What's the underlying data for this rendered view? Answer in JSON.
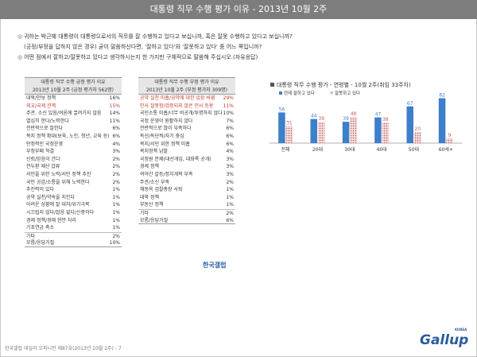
{
  "header": {
    "title": "대통령 직무 수행 평가 이유 - 2013년 10월 2주"
  },
  "questions": {
    "q1_line1": "귀하는 박근혜 대통령이 대통령으로서의 직무를 잘 수행하고 있다고 보십니까, 혹은 잘못 수행하고 있다고 보십니까?",
    "q1_line2": "(긍정/부정을 답하지 않은 경우) 굳이 말씀하신다면, '잘하고 있다'와 '잘못하고 있다' 중 어느 쪽입니까?",
    "q2_line1": "어떤 점에서 잘하고/잘못하고 있다고 생각하시는지 한 가지만 구체적으로 말씀해 주십시오.(자유응답)"
  },
  "positive_table": {
    "title_line1": "대통령 직무 수행 긍정 평가 이유",
    "title_line2": "2013년 10월 2주 (긍정 평가자 562명)",
    "rows": [
      {
        "label": "대북/안보 정책",
        "value": "16%",
        "red": false
      },
      {
        "label": "외교/국제 관계",
        "value": "15%",
        "red": true
      },
      {
        "label": "주관, 소신 있음/여론에 끌려가지 않음",
        "value": "14%",
        "red": false
      },
      {
        "label": "열심히 한다/노력한다",
        "value": "11%",
        "red": false
      },
      {
        "label": "전반적으로 잘한다",
        "value": "6%",
        "red": false
      },
      {
        "label": "복지 정책 확대(보육, 노인, 청년, 교육 등)",
        "value": "6%",
        "red": false
      },
      {
        "label": "안정적인 국정운영",
        "value": "4%",
        "red": false
      },
      {
        "label": "부정부패 척결",
        "value": "3%",
        "red": false
      },
      {
        "label": "신뢰/믿음이 간다",
        "value": "2%",
        "red": false
      },
      {
        "label": "전두환 재산 압류",
        "value": "2%",
        "red": false
      },
      {
        "label": "서민을 위한 노력/서민 정책 추진",
        "value": "2%",
        "red": false
      },
      {
        "label": "국민 공감/소통을 위해 노력한다",
        "value": "2%",
        "red": false
      },
      {
        "label": "추진력이 있다",
        "value": "1%",
        "red": false
      },
      {
        "label": "공약 실천/약속을 지킨다",
        "value": "1%",
        "red": false
      },
      {
        "label": "어려운 상황에 잘 대처/위기극복",
        "value": "1%",
        "red": false
      },
      {
        "label": "시끄럽지 않다/잡음 없다/신중하다",
        "value": "1%",
        "red": false
      },
      {
        "label": "경제 정책/경제 현안 처리",
        "value": "1%",
        "red": false
      },
      {
        "label": "기초연금 축소",
        "value": "1%",
        "red": false
      },
      {
        "label": "기타",
        "value": "2%",
        "red": false,
        "sep": true
      },
      {
        "label": "모름/응답거절",
        "value": "10%",
        "red": false
      }
    ]
  },
  "negative_table": {
    "title_line1": "대통령 직무 수행 부정 평가 이유",
    "title_line2": "2013년 10월 2주 (부정 평가자 309명)",
    "rows": [
      {
        "label": "공약 실천 미흡/공약에 대한 입장 바뀜",
        "value": "29%",
        "red": true
      },
      {
        "label": "인사 잘못함/검증되지 않은 인사 등용",
        "value": "11%",
        "red": true
      },
      {
        "label": "국민소통 미흡/너무 비공개/투명하지 않다",
        "value": "10%",
        "red": false
      },
      {
        "label": "국정 운영이 원활하지 않다",
        "value": "7%",
        "red": false
      },
      {
        "label": "전반적으로 많이 부족하다",
        "value": "6%",
        "red": false
      },
      {
        "label": "독선/독단적/자기 중심",
        "value": "6%",
        "red": false
      },
      {
        "label": "복지/서민 위한 정책 미흡",
        "value": "6%",
        "red": false
      },
      {
        "label": "복지정책 남발",
        "value": "4%",
        "red": false
      },
      {
        "label": "국정원 문제(대선개입, 대화록 공개)",
        "value": "3%",
        "red": false
      },
      {
        "label": "경제 정책",
        "value": "3%",
        "red": false
      },
      {
        "label": "여야간 갈등/정치개혁 부족",
        "value": "3%",
        "red": false
      },
      {
        "label": "주관/소신 부족",
        "value": "2%",
        "red": false
      },
      {
        "label": "채동욱 검찰총장 사퇴",
        "value": "1%",
        "red": false
      },
      {
        "label": "대북 정책",
        "value": "1%",
        "red": false
      },
      {
        "label": "부동산 정책",
        "value": "1%",
        "red": false
      },
      {
        "label": "기타",
        "value": "2%",
        "red": false,
        "sep": true
      },
      {
        "label": "모름/응답거절",
        "value": "6%",
        "red": false
      }
    ]
  },
  "logo_small": "한국갤럽",
  "chart_data": {
    "type": "bar",
    "title": "대통령 직무 수행 평가 - 연령별 - 10월 2주(취임 33주차)",
    "categories": [
      "전체",
      "20대",
      "30대",
      "40대",
      "50대",
      "60세+"
    ],
    "series": [
      {
        "name": "현재 잘하고 있다",
        "values": [
          56,
          44,
          39,
          47,
          67,
          82
        ],
        "color": "#3d7fc9"
      },
      {
        "name": "잘못하고 있다",
        "values": [
          31,
          39,
          48,
          38,
          20,
          9
        ],
        "color": "#c95c5c"
      }
    ],
    "ylim": [
      0,
      90
    ],
    "legend": "top-left"
  },
  "footer": "한국갤럽 데일리 오피니언 제87호(2013년 10월 2주) - 7",
  "brand": {
    "name": "Gallup",
    "korea": "KOREA"
  }
}
